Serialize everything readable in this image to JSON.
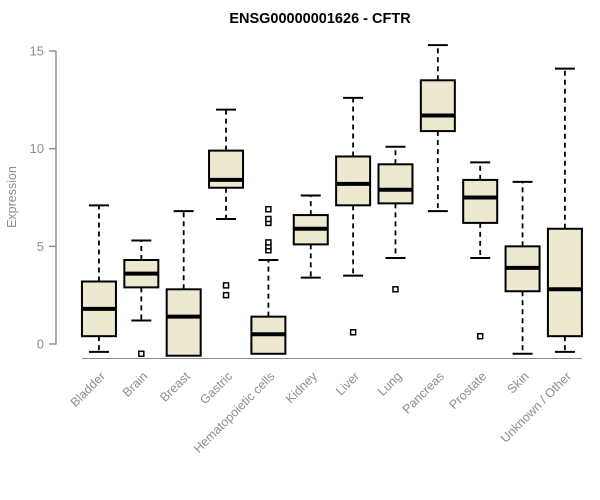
{
  "chart_data": {
    "type": "boxplot",
    "title": "ENSG00000001626 - CFTR",
    "ylabel": "Expression",
    "xlabel": "",
    "yticks": [
      0,
      5,
      10,
      15
    ],
    "ylim": [
      0,
      15
    ],
    "grid": false,
    "legend": "none",
    "categories": [
      "Bladder",
      "Brain",
      "Breast",
      "Gastric",
      "Hematopoietic cells",
      "Kidney",
      "Liver",
      "Lung",
      "Pancreas",
      "Prostate",
      "Skin",
      "Unknown / Other"
    ],
    "boxes": [
      {
        "category": "Bladder",
        "low": -0.4,
        "q1": 0.4,
        "median": 1.8,
        "q3": 3.2,
        "high": 7.1,
        "outliers": []
      },
      {
        "category": "Brain",
        "low": 1.2,
        "q1": 2.9,
        "median": 3.6,
        "q3": 4.3,
        "high": 5.3,
        "outliers": [
          -0.5
        ]
      },
      {
        "category": "Breast",
        "low": null,
        "q1": -0.6,
        "median": 1.4,
        "q3": 2.8,
        "high": 6.8,
        "outliers": []
      },
      {
        "category": "Gastric",
        "low": 6.4,
        "q1": 8.0,
        "median": 8.4,
        "q3": 9.9,
        "high": 12.0,
        "outliers": [
          3.0,
          2.5
        ]
      },
      {
        "category": "Hematopoietic cells",
        "low": null,
        "q1": -0.5,
        "median": 0.5,
        "q3": 1.4,
        "high": 4.3,
        "outliers": [
          4.8,
          5.0,
          5.2,
          6.2,
          6.4,
          6.9
        ]
      },
      {
        "category": "Kidney",
        "low": 3.4,
        "q1": 5.1,
        "median": 5.9,
        "q3": 6.6,
        "high": 7.6,
        "outliers": []
      },
      {
        "category": "Liver",
        "low": 3.5,
        "q1": 7.1,
        "median": 8.2,
        "q3": 9.6,
        "high": 12.6,
        "outliers": [
          0.6
        ]
      },
      {
        "category": "Lung",
        "low": 4.4,
        "q1": 7.2,
        "median": 7.9,
        "q3": 9.2,
        "high": 10.1,
        "outliers": [
          2.8
        ]
      },
      {
        "category": "Pancreas",
        "low": 6.8,
        "q1": 10.9,
        "median": 11.7,
        "q3": 13.5,
        "high": 15.3,
        "outliers": []
      },
      {
        "category": "Prostate",
        "low": 4.4,
        "q1": 6.2,
        "median": 7.5,
        "q3": 8.4,
        "high": 9.3,
        "outliers": [
          0.4
        ]
      },
      {
        "category": "Skin",
        "low": -0.5,
        "q1": 2.7,
        "median": 3.9,
        "q3": 5.0,
        "high": 8.3,
        "outliers": []
      },
      {
        "category": "Unknown / Other",
        "low": -0.4,
        "q1": 0.4,
        "median": 2.8,
        "q3": 5.9,
        "high": 14.1,
        "outliers": []
      }
    ],
    "colors": {
      "box_fill": "#EDE8D0",
      "box_border": "#000000",
      "median": "#000000",
      "whisker": "#000000",
      "axis": "#8A8A8A",
      "tick_label": "#8E8E8E",
      "title": "#000000",
      "background": "#FFFFFF"
    }
  }
}
